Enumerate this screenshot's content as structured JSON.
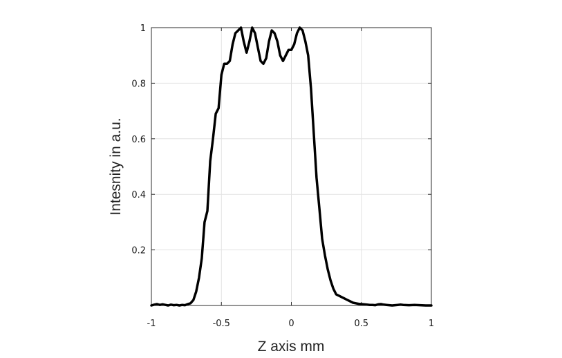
{
  "chart_data": {
    "type": "line",
    "title": "",
    "xlabel": "Z axis mm",
    "ylabel": "Intesnity in a.u.",
    "xlim": [
      -1,
      1
    ],
    "ylim": [
      0,
      1
    ],
    "grid": true,
    "x_ticks": [
      -1,
      -0.5,
      0,
      0.5,
      1
    ],
    "x_tick_labels": [
      "-1",
      "-0.5",
      "0",
      "0.5",
      "1"
    ],
    "y_ticks": [
      0.2,
      0.4,
      0.6,
      0.8,
      1
    ],
    "y_tick_labels": [
      "0.2",
      "0.4",
      "0.6",
      "0.8",
      "1"
    ],
    "series": [
      {
        "color": "#000000",
        "x": [
          -1.0,
          -0.98,
          -0.96,
          -0.94,
          -0.92,
          -0.9,
          -0.88,
          -0.86,
          -0.84,
          -0.82,
          -0.8,
          -0.78,
          -0.76,
          -0.74,
          -0.72,
          -0.7,
          -0.68,
          -0.66,
          -0.64,
          -0.62,
          -0.6,
          -0.58,
          -0.56,
          -0.54,
          -0.52,
          -0.5,
          -0.48,
          -0.46,
          -0.44,
          -0.42,
          -0.4,
          -0.38,
          -0.36,
          -0.34,
          -0.32,
          -0.3,
          -0.28,
          -0.26,
          -0.24,
          -0.22,
          -0.2,
          -0.18,
          -0.16,
          -0.14,
          -0.12,
          -0.1,
          -0.08,
          -0.06,
          -0.04,
          -0.02,
          0.0,
          0.02,
          0.04,
          0.06,
          0.08,
          0.1,
          0.12,
          0.14,
          0.16,
          0.18,
          0.2,
          0.22,
          0.24,
          0.26,
          0.28,
          0.3,
          0.32,
          0.34,
          0.36,
          0.38,
          0.4,
          0.42,
          0.44,
          0.46,
          0.48,
          0.5,
          0.52,
          0.54,
          0.56,
          0.58,
          0.6,
          0.62,
          0.64,
          0.66,
          0.68,
          0.7,
          0.72,
          0.74,
          0.76,
          0.78,
          0.8,
          0.84,
          0.88,
          0.92,
          0.96,
          1.0
        ],
        "y": [
          0.0,
          0.003,
          0.005,
          0.002,
          0.004,
          0.002,
          0.0,
          0.003,
          0.001,
          0.002,
          0.0,
          0.002,
          0.001,
          0.005,
          0.008,
          0.02,
          0.05,
          0.1,
          0.17,
          0.3,
          0.34,
          0.52,
          0.6,
          0.69,
          0.71,
          0.83,
          0.87,
          0.87,
          0.88,
          0.94,
          0.98,
          0.99,
          1.0,
          0.95,
          0.91,
          0.95,
          1.0,
          0.98,
          0.93,
          0.88,
          0.87,
          0.89,
          0.95,
          0.99,
          0.98,
          0.95,
          0.9,
          0.88,
          0.9,
          0.92,
          0.92,
          0.94,
          0.98,
          1.0,
          0.99,
          0.95,
          0.9,
          0.78,
          0.62,
          0.46,
          0.35,
          0.24,
          0.18,
          0.13,
          0.09,
          0.06,
          0.04,
          0.035,
          0.03,
          0.025,
          0.02,
          0.015,
          0.01,
          0.008,
          0.006,
          0.005,
          0.004,
          0.003,
          0.002,
          0.002,
          0.001,
          0.004,
          0.005,
          0.003,
          0.002,
          0.001,
          0.0,
          0.001,
          0.002,
          0.003,
          0.002,
          0.001,
          0.002,
          0.001,
          0.0,
          0.0
        ]
      }
    ]
  }
}
